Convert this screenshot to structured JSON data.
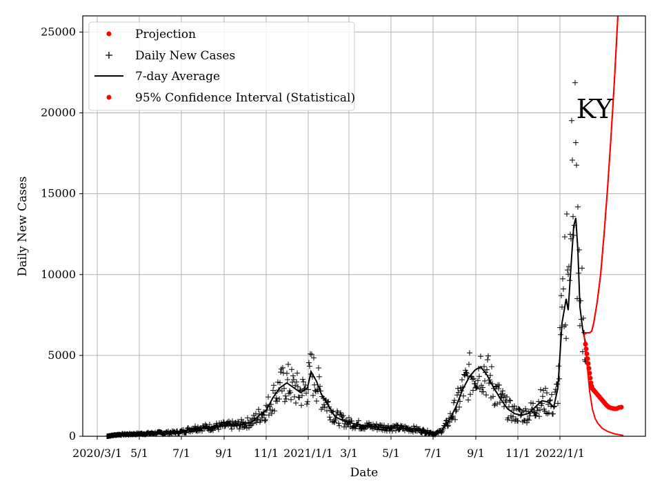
{
  "chart_data": {
    "type": "line",
    "state_label": "KY",
    "xlabel": "Date",
    "ylabel": "Daily New Cases",
    "ylim": [
      0,
      26000
    ],
    "grid": true,
    "legend_position": "upper-left",
    "x_ticks": [
      {
        "day": 0,
        "label": "2020/3/1"
      },
      {
        "day": 61,
        "label": "5/1"
      },
      {
        "day": 122,
        "label": "7/1"
      },
      {
        "day": 184,
        "label": "9/1"
      },
      {
        "day": 245,
        "label": "11/1"
      },
      {
        "day": 306,
        "label": "2021/1/1"
      },
      {
        "day": 365,
        "label": "3/1"
      },
      {
        "day": 426,
        "label": "5/1"
      },
      {
        "day": 487,
        "label": "7/1"
      },
      {
        "day": 549,
        "label": "9/1"
      },
      {
        "day": 610,
        "label": "11/1"
      },
      {
        "day": 671,
        "label": "2022/1/1"
      }
    ],
    "y_ticks": [
      0,
      5000,
      10000,
      15000,
      20000,
      25000
    ],
    "legend": [
      {
        "label": "Projection",
        "marker": "dot",
        "color": "#ff0000"
      },
      {
        "label": "Daily New Cases",
        "marker": "plus",
        "color": "#000000"
      },
      {
        "label": "7-day Average",
        "marker": "line",
        "color": "#000000"
      },
      {
        "label": "95% Confidence Interval (Statistical)",
        "marker": "dot",
        "color": "#ff0000"
      }
    ],
    "series": [
      {
        "name": "7-day Average",
        "color": "#000000",
        "points": [
          [
            14,
            0
          ],
          [
            30,
            100
          ],
          [
            60,
            150
          ],
          [
            90,
            200
          ],
          [
            120,
            250
          ],
          [
            140,
            500
          ],
          [
            160,
            550
          ],
          [
            185,
            650
          ],
          [
            205,
            700
          ],
          [
            225,
            900
          ],
          [
            235,
            1300
          ],
          [
            245,
            1600
          ],
          [
            255,
            2400
          ],
          [
            265,
            3000
          ],
          [
            275,
            3300
          ],
          [
            285,
            3000
          ],
          [
            295,
            2700
          ],
          [
            305,
            3000
          ],
          [
            310,
            4000
          ],
          [
            318,
            3400
          ],
          [
            325,
            2600
          ],
          [
            335,
            1900
          ],
          [
            345,
            1200
          ],
          [
            360,
            900
          ],
          [
            380,
            700
          ],
          [
            400,
            600
          ],
          [
            420,
            550
          ],
          [
            440,
            500
          ],
          [
            460,
            450
          ],
          [
            475,
            300
          ],
          [
            490,
            150
          ],
          [
            498,
            300
          ],
          [
            508,
            800
          ],
          [
            520,
            1800
          ],
          [
            530,
            2900
          ],
          [
            540,
            3700
          ],
          [
            548,
            4100
          ],
          [
            556,
            4300
          ],
          [
            565,
            3800
          ],
          [
            575,
            3000
          ],
          [
            585,
            2300
          ],
          [
            595,
            1700
          ],
          [
            605,
            1400
          ],
          [
            615,
            1300
          ],
          [
            625,
            1400
          ],
          [
            635,
            1800
          ],
          [
            645,
            2200
          ],
          [
            655,
            2100
          ],
          [
            662,
            1800
          ],
          [
            668,
            3000
          ],
          [
            674,
            7000
          ],
          [
            680,
            8500
          ],
          [
            683,
            7800
          ],
          [
            687,
            10500
          ],
          [
            691,
            13000
          ],
          [
            694,
            13500
          ],
          [
            697,
            11500
          ],
          [
            700,
            8000
          ],
          [
            704,
            6600
          ],
          [
            708,
            5800
          ]
        ]
      },
      {
        "name": "Projection (central)",
        "color": "#ff0000",
        "points": [
          [
            706,
            6300
          ],
          [
            710,
            6400
          ],
          [
            714,
            6400
          ],
          [
            717,
            6500
          ],
          [
            720,
            7000
          ],
          [
            725,
            8300
          ],
          [
            730,
            10000
          ],
          [
            735,
            12500
          ],
          [
            740,
            15300
          ],
          [
            745,
            18500
          ],
          [
            750,
            22000
          ],
          [
            755,
            26000
          ]
        ]
      },
      {
        "name": "95% Confidence Interval (upper)",
        "color": "#ff0000",
        "points": [
          [
            706,
            6300
          ],
          [
            710,
            6400
          ],
          [
            714,
            6400
          ],
          [
            717,
            6500
          ],
          [
            720,
            7000
          ],
          [
            725,
            8300
          ],
          [
            730,
            10000
          ],
          [
            735,
            12500
          ],
          [
            740,
            15300
          ],
          [
            745,
            18500
          ],
          [
            750,
            22000
          ],
          [
            755,
            26000
          ]
        ]
      },
      {
        "name": "95% Confidence Interval (lower)",
        "color": "#ff0000",
        "points": [
          [
            706,
            6300
          ],
          [
            710,
            4600
          ],
          [
            714,
            2800
          ],
          [
            718,
            1700
          ],
          [
            722,
            1100
          ],
          [
            726,
            800
          ],
          [
            732,
            500
          ],
          [
            740,
            300
          ],
          [
            750,
            150
          ],
          [
            763,
            50
          ]
        ]
      }
    ],
    "projection_dots": [
      [
        708,
        5700
      ],
      [
        709,
        5400
      ],
      [
        710,
        5100
      ],
      [
        711,
        4800
      ],
      [
        712,
        4500
      ],
      [
        713,
        4200
      ],
      [
        714,
        3900
      ],
      [
        715,
        3600
      ],
      [
        716,
        3300
      ],
      [
        717,
        3100
      ],
      [
        718,
        2950
      ],
      [
        720,
        2850
      ],
      [
        722,
        2750
      ],
      [
        724,
        2650
      ],
      [
        726,
        2550
      ],
      [
        728,
        2450
      ],
      [
        730,
        2350
      ],
      [
        732,
        2250
      ],
      [
        734,
        2150
      ],
      [
        736,
        2050
      ],
      [
        738,
        1950
      ],
      [
        740,
        1870
      ],
      [
        742,
        1800
      ],
      [
        745,
        1750
      ],
      [
        748,
        1720
      ],
      [
        751,
        1700
      ],
      [
        754,
        1720
      ],
      [
        757,
        1780
      ],
      [
        760,
        1800
      ]
    ]
  }
}
